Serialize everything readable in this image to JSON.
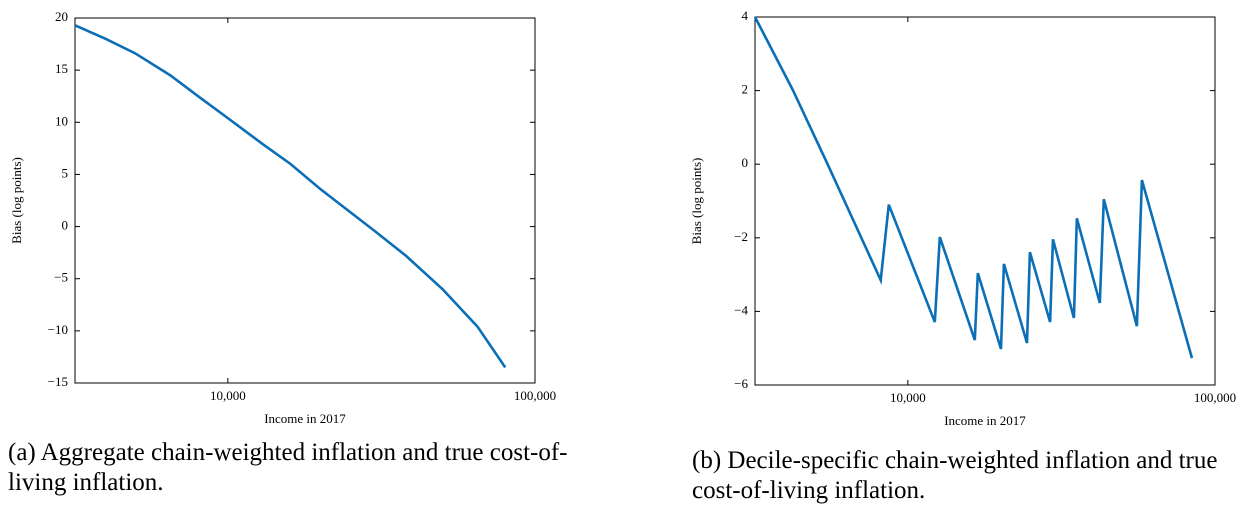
{
  "chart_data": [
    {
      "type": "line",
      "caption": "(a) Aggregate chain-weighted inflation and true cost-of-living inflation.",
      "x_label": "Income in 2017",
      "y_label": "Bias (log points)",
      "xscale": "log",
      "xlim": [
        3180,
        100000
      ],
      "ylim": [
        -15,
        20
      ],
      "xticks": [
        {
          "value": 10000,
          "label": "10,000"
        },
        {
          "value": 100000,
          "label": "100,000"
        }
      ],
      "yticks": [
        {
          "value": -15,
          "label": "−15"
        },
        {
          "value": -10,
          "label": "−10"
        },
        {
          "value": -5,
          "label": "−5"
        },
        0,
        5,
        10,
        15,
        20
      ],
      "color": "#0b6fb8",
      "x": [
        3180,
        4000,
        5000,
        6500,
        8000,
        10000,
        13000,
        16000,
        20000,
        25000,
        30000,
        38000,
        50000,
        65000,
        80000
      ],
      "values": [
        19.3,
        18.0,
        16.6,
        14.5,
        12.5,
        10.4,
        7.9,
        6.0,
        3.6,
        1.4,
        -0.4,
        -2.8,
        -6.0,
        -9.6,
        -13.5
      ]
    },
    {
      "type": "line",
      "caption": "(b) Decile-specific chain-weighted inflation and true cost-of-living inflation.",
      "x_label": "Income in 2017",
      "y_label": "Bias (log points)",
      "xscale": "log",
      "xlim": [
        3180,
        100000
      ],
      "ylim": [
        -6,
        4
      ],
      "xticks": [
        {
          "value": 10000,
          "label": "10,000"
        },
        {
          "value": 100000,
          "label": "100,000"
        }
      ],
      "yticks": [
        {
          "value": -6,
          "label": "−6"
        },
        {
          "value": -4,
          "label": "−4"
        },
        {
          "value": -2,
          "label": "−2"
        },
        0,
        2,
        4
      ],
      "color": "#0b6fb8",
      "x": [
        3180,
        4220,
        5480,
        8160,
        8670,
        12240,
        12710,
        16520,
        16900,
        20100,
        20550,
        24430,
        24970,
        29050,
        29680,
        34730,
        35500,
        42170,
        43450,
        55680,
        57810,
        84140
      ],
      "values": [
        4,
        2.02,
        0,
        -3.15,
        -1.1,
        -4.29,
        -1.98,
        -4.78,
        -2.96,
        -5.02,
        -2.71,
        -4.86,
        -2.39,
        -4.29,
        -2.04,
        -4.18,
        -1.47,
        -3.77,
        -0.95,
        -4.4,
        -0.43,
        -5.27
      ]
    }
  ]
}
